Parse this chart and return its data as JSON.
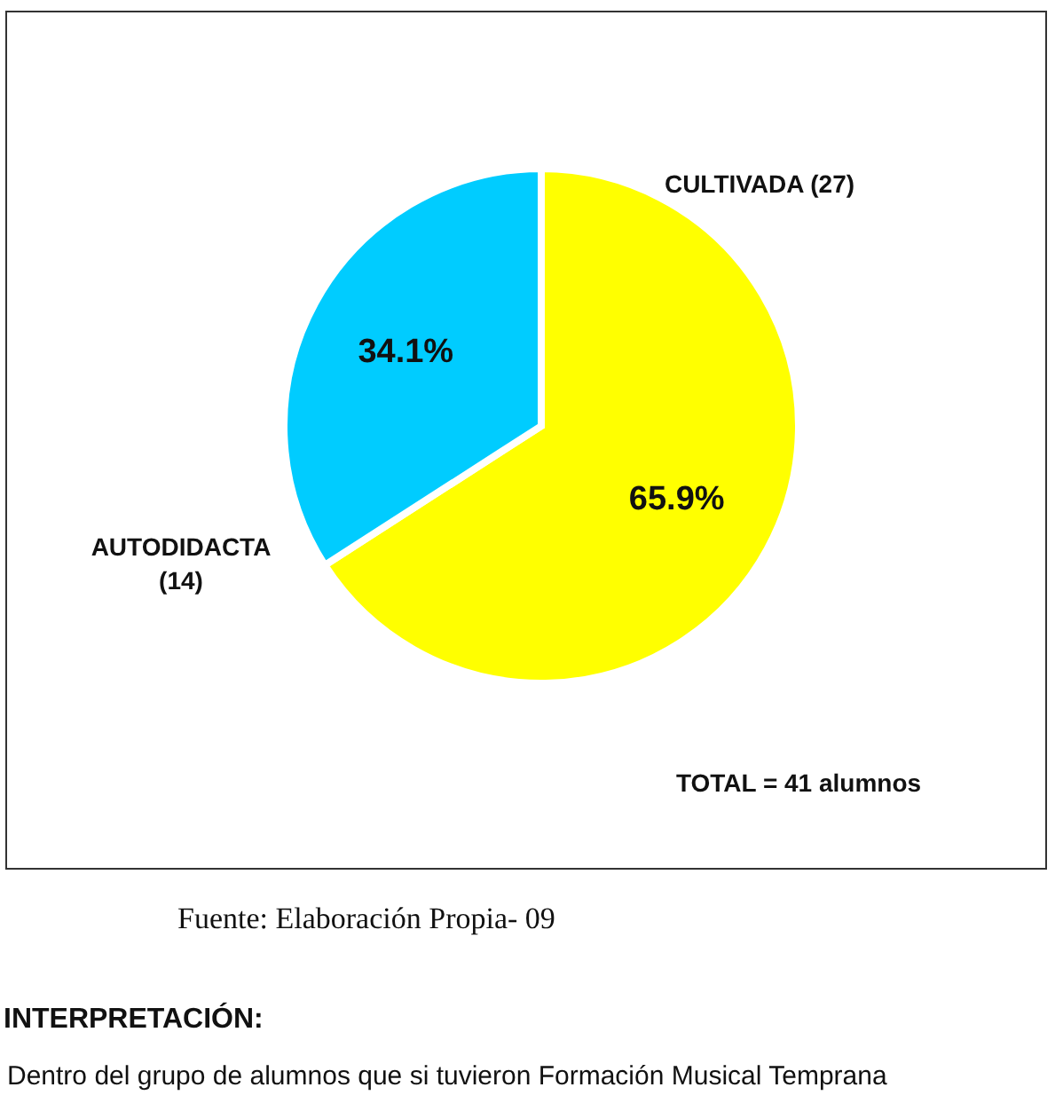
{
  "chart_data": {
    "type": "pie",
    "categories": [
      "CULTIVADA (27)",
      "AUTODIDACTA (14)"
    ],
    "values": [
      65.9,
      34.1
    ],
    "colors": [
      "#ffff00",
      "#00ccff"
    ],
    "value_labels": [
      "65.9%",
      "34.1%"
    ],
    "annotations": [
      "TOTAL = 41 alumnos",
      "Fuente: Elaboración Propia- 09",
      "INTERPRETACIÓN:",
      "Dentro del grupo de alumnos que si tuvieron Formación Musical Temprana"
    ]
  }
}
